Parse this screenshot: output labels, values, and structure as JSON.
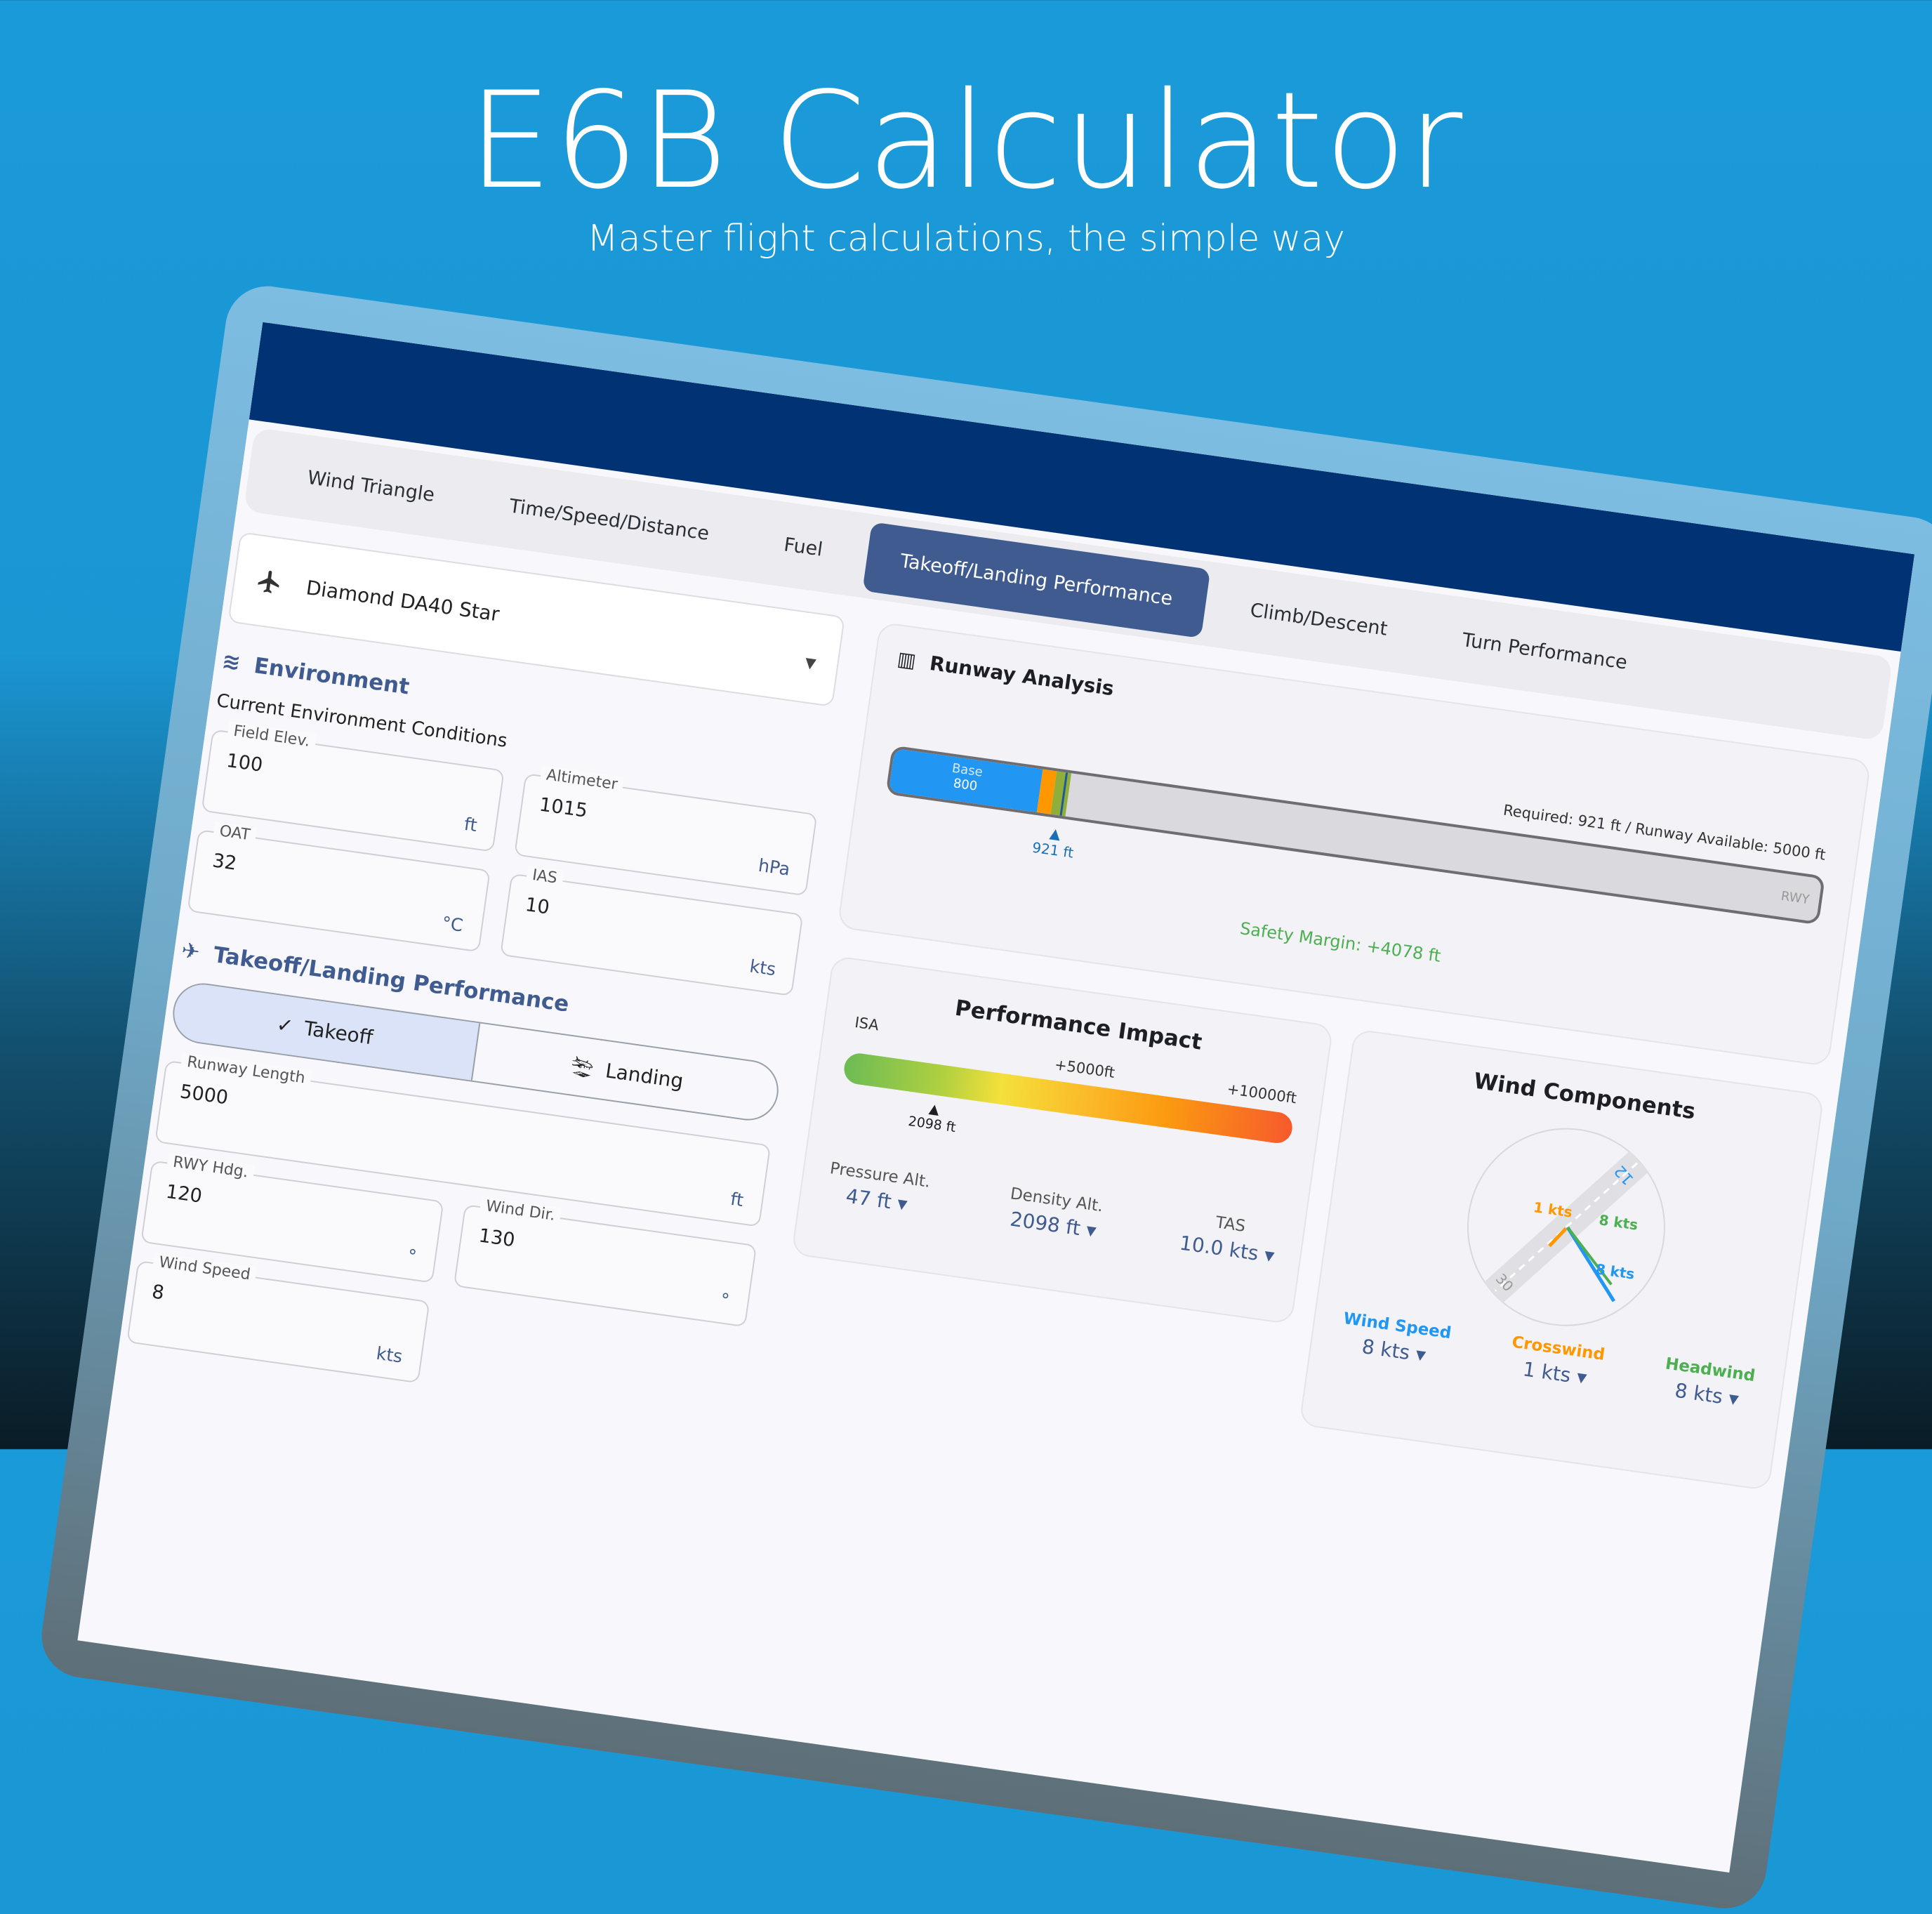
{
  "hero": {
    "title": "E6B Calculator",
    "subtitle": "Master flight calculations, the simple way"
  },
  "tabs": [
    {
      "label": "Wind Triangle"
    },
    {
      "label": "Time/Speed/Distance"
    },
    {
      "label": "Fuel"
    },
    {
      "label": "Takeoff/Landing Performance",
      "active": true
    },
    {
      "label": "Climb/Descent"
    },
    {
      "label": "Turn Performance"
    }
  ],
  "aircraft": {
    "selected": "Diamond DA40 Star",
    "icon": "airplane-icon"
  },
  "environment": {
    "title": "Environment",
    "subtitle": "Current Environment Conditions",
    "field_elev": {
      "label": "Field Elev.",
      "value": "100",
      "unit": "ft"
    },
    "altimeter": {
      "label": "Altimeter",
      "value": "1015",
      "unit": "hPa"
    },
    "oat": {
      "label": "OAT",
      "value": "32",
      "unit": "°C"
    },
    "ias": {
      "label": "IAS",
      "value": "10",
      "unit": "kts"
    }
  },
  "performance": {
    "title": "Takeoff/Landing Performance",
    "mode_takeoff": "Takeoff",
    "mode_landing": "Landing",
    "selected_mode": "Takeoff",
    "runway_length": {
      "label": "Runway Length",
      "value": "5000",
      "unit": "ft"
    },
    "rwy_hdg": {
      "label": "RWY Hdg.",
      "value": "120",
      "unit": "°"
    },
    "wind_dir": {
      "label": "Wind Dir.",
      "value": "130",
      "unit": "°"
    },
    "wind_speed": {
      "label": "Wind Speed",
      "value": "8",
      "unit": "kts"
    }
  },
  "runway_analysis": {
    "title": "Runway Analysis",
    "base_label": "Base",
    "base_value": "800",
    "base_ft": 800,
    "required_ft": 921,
    "available_ft": 5000,
    "marker": "921 ft",
    "summary": "Required: 921 ft  /  Runway Available: 5000 ft",
    "rwy_label": "RWY",
    "safety_margin": "Safety Margin: +4078 ft",
    "colors": {
      "base": "#2196f3",
      "adj1": "#ff9800",
      "adj2": "#8faf3a",
      "margin": "#4caf50"
    }
  },
  "performance_impact": {
    "title": "Performance Impact",
    "scale_isa": "ISA",
    "scale_mid": "+5000ft",
    "scale_max": "+10000ft",
    "marker": "2098 ft",
    "density_alt_ft": 2098,
    "pressure_alt": {
      "label": "Pressure Alt.",
      "value": "47 ft"
    },
    "density_alt": {
      "label": "Density Alt.",
      "value": "2098 ft"
    },
    "tas": {
      "label": "TAS",
      "value": "10.0 kts"
    }
  },
  "wind_components": {
    "title": "Wind Components",
    "runway_start": "12",
    "runway_end": "30",
    "crosswind_label": "1 kts",
    "headwind_label": "8 kts",
    "wind_label": "8 kts",
    "wind_speed": {
      "label": "Wind Speed",
      "value": "8 kts",
      "color": "#2196f3"
    },
    "crosswind": {
      "label": "Crosswind",
      "value": "1 kts",
      "color": "#ff9800"
    },
    "headwind": {
      "label": "Headwind",
      "value": "8 kts",
      "color": "#4caf50"
    }
  }
}
